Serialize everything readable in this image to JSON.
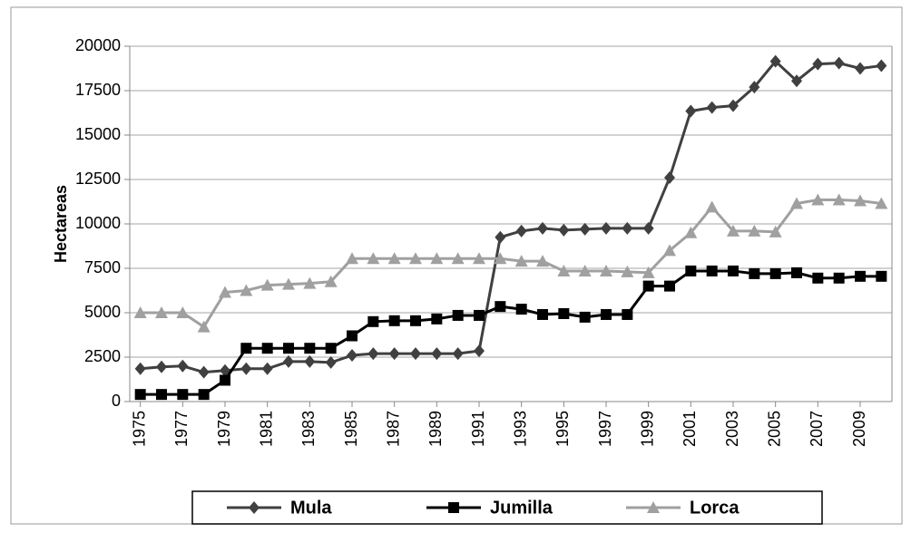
{
  "chart_data": {
    "type": "line",
    "y_label": "Hectareas",
    "x": [
      1975,
      1976,
      1977,
      1978,
      1979,
      1980,
      1981,
      1982,
      1983,
      1984,
      1985,
      1986,
      1987,
      1988,
      1989,
      1990,
      1991,
      1992,
      1993,
      1994,
      1995,
      1996,
      1997,
      1998,
      1999,
      2000,
      2001,
      2002,
      2003,
      2004,
      2005,
      2006,
      2007,
      2008,
      2009,
      2010
    ],
    "xlim": [
      1974.5,
      2010.5
    ],
    "xticks": [
      1975,
      1977,
      1979,
      1981,
      1983,
      1985,
      1987,
      1989,
      1991,
      1993,
      1995,
      1997,
      1999,
      2001,
      2003,
      2005,
      2007,
      2009
    ],
    "ylim": [
      0,
      20000
    ],
    "yticks": [
      0,
      2500,
      5000,
      7500,
      10000,
      12500,
      15000,
      17500,
      20000
    ],
    "grid": true,
    "legend": "bottom",
    "series": [
      {
        "name": "Mula",
        "color": "#404040",
        "marker": "diamond",
        "values": [
          1850,
          1950,
          2000,
          1650,
          1750,
          1850,
          1850,
          2250,
          2250,
          2200,
          2600,
          2700,
          2700,
          2700,
          2700,
          2700,
          2850,
          9250,
          9600,
          9750,
          9650,
          9700,
          9750,
          9750,
          9750,
          12600,
          16350,
          16550,
          16650,
          17700,
          19150,
          18050,
          19000,
          19050,
          18750,
          18900
        ]
      },
      {
        "name": "Jumilla",
        "color": "#000000",
        "marker": "square",
        "values": [
          400,
          400,
          400,
          400,
          1200,
          3000,
          3000,
          3000,
          3000,
          3000,
          3700,
          4500,
          4550,
          4550,
          4650,
          4850,
          4850,
          5350,
          5200,
          4900,
          4950,
          4750,
          4900,
          4900,
          6500,
          6500,
          7350,
          7350,
          7350,
          7200,
          7200,
          7250,
          6950,
          6950,
          7050,
          7050
        ]
      },
      {
        "name": "Lorca",
        "color": "#a0a0a0",
        "marker": "triangle",
        "values": [
          5000,
          5000,
          5000,
          4200,
          6150,
          6250,
          6550,
          6600,
          6650,
          6750,
          8050,
          8050,
          8050,
          8050,
          8050,
          8050,
          8050,
          8050,
          7900,
          7900,
          7350,
          7350,
          7350,
          7300,
          7250,
          8500,
          9500,
          10950,
          9600,
          9600,
          9550,
          11150,
          11350,
          11350,
          11300,
          11150
        ]
      }
    ]
  }
}
